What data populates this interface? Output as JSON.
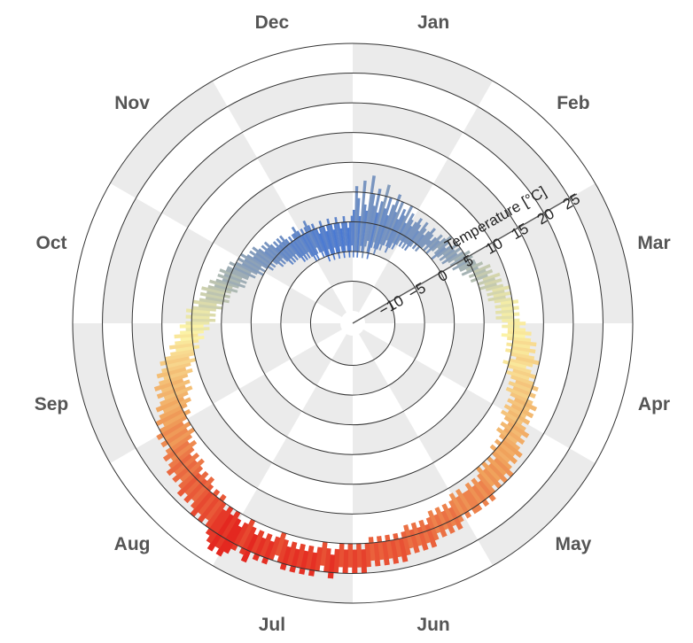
{
  "chart_data": {
    "type": "radial-bar",
    "title": "",
    "axis_label": "Temperature [°C]",
    "radial_ticks": [
      -10,
      -5,
      0,
      5,
      10,
      15,
      20,
      25
    ],
    "radial_range": [
      -15,
      30
    ],
    "months": [
      "Jan",
      "Feb",
      "Mar",
      "Apr",
      "May",
      "Jun",
      "Jul",
      "Aug",
      "Sep",
      "Oct",
      "Nov",
      "Dec"
    ],
    "series": [
      {
        "interval": "daily",
        "min_temp": [
          -6,
          -5,
          -5,
          -6,
          -5,
          -4,
          -5,
          -6,
          -4,
          -3,
          -5,
          -6,
          -4,
          -3,
          -4,
          -5,
          -4,
          -3,
          -4,
          -3,
          -2,
          -3,
          -4,
          -3,
          -2,
          -3,
          -2,
          -1,
          -2,
          -1,
          -2,
          -1,
          -2,
          -1,
          0,
          -1,
          0,
          -1,
          0,
          1,
          0,
          1,
          0,
          1,
          2,
          1,
          0,
          1,
          2,
          1,
          2,
          1,
          2,
          3,
          2,
          3,
          2,
          3,
          3,
          4,
          3,
          5,
          4,
          5,
          4,
          6,
          5,
          6,
          5,
          6,
          7,
          6,
          7,
          6,
          7,
          8,
          7,
          8,
          7,
          8,
          7,
          8,
          9,
          8,
          9,
          9,
          8,
          9,
          10,
          9,
          10,
          9,
          10,
          11,
          10,
          9,
          10,
          11,
          10,
          11,
          12,
          11,
          12,
          11,
          12,
          13,
          12,
          13,
          12,
          13,
          12,
          13,
          14,
          13,
          14,
          13,
          14,
          15,
          14,
          15,
          14,
          15,
          16,
          15,
          16,
          15,
          16,
          15,
          16,
          17,
          16,
          17,
          16,
          17,
          17,
          16,
          17,
          16,
          17,
          18,
          17,
          18,
          17,
          18,
          17,
          18,
          19,
          18,
          19,
          18,
          19,
          18,
          19,
          20,
          19,
          20,
          19,
          20,
          19,
          20,
          19,
          20,
          21,
          20,
          21,
          20,
          21,
          20,
          21,
          22,
          21,
          20,
          21,
          22,
          21,
          22,
          21,
          22,
          21,
          22,
          21,
          20,
          21,
          22,
          21,
          22,
          21,
          22,
          21,
          20,
          21,
          22,
          21,
          20,
          21,
          20,
          21,
          20,
          19,
          20,
          19,
          20,
          19,
          18,
          19,
          18,
          19,
          18,
          17,
          18,
          17,
          18,
          17,
          16,
          17,
          16,
          15,
          16,
          15,
          16,
          15,
          14,
          15,
          14,
          13,
          14,
          13,
          12,
          13,
          12,
          13,
          12,
          11,
          12,
          11,
          10,
          11,
          10,
          10,
          9,
          10,
          9,
          8,
          9,
          8,
          7,
          8,
          7,
          6,
          7,
          6,
          7,
          6,
          5,
          6,
          5,
          4,
          5,
          4,
          5,
          4,
          3,
          4,
          3,
          2,
          3,
          2,
          3,
          2,
          2,
          1,
          2,
          1,
          0,
          1,
          0,
          1,
          0,
          -1,
          0,
          -1,
          0,
          -1,
          -2,
          -1,
          -2,
          -1,
          -2,
          -3,
          -2,
          -3,
          -2,
          -3,
          -2,
          -3,
          -4,
          -3,
          -4,
          -3,
          -4,
          -3,
          -4,
          -5,
          -4,
          -5,
          -4,
          -3,
          -4,
          -5,
          -4,
          -5,
          -6,
          -5,
          -4,
          -5,
          -6,
          -5,
          -4,
          -5,
          -6,
          -5,
          -4,
          -5,
          -6,
          -5,
          -4,
          -5,
          -6,
          -5,
          -4
        ],
        "max_temp": [
          2,
          6,
          4,
          1,
          7,
          3,
          2,
          8,
          5,
          3,
          6,
          2,
          4,
          7,
          3,
          5,
          2,
          4,
          6,
          3,
          5,
          2,
          4,
          3,
          5,
          2,
          4,
          3,
          2,
          3,
          4,
          3,
          2,
          4,
          3,
          2,
          3,
          4,
          3,
          2,
          3,
          4,
          3,
          4,
          5,
          4,
          3,
          4,
          5,
          4,
          5,
          4,
          5,
          6,
          5,
          6,
          5,
          6,
          6,
          7,
          6,
          8,
          7,
          8,
          7,
          9,
          8,
          9,
          8,
          9,
          10,
          9,
          10,
          9,
          10,
          11,
          10,
          11,
          10,
          11,
          10,
          11,
          12,
          11,
          12,
          13,
          12,
          13,
          14,
          13,
          14,
          13,
          14,
          15,
          14,
          13,
          14,
          15,
          14,
          15,
          16,
          15,
          16,
          15,
          16,
          17,
          16,
          17,
          16,
          17,
          16,
          17,
          18,
          17,
          18,
          17,
          18,
          19,
          18,
          19,
          18,
          19,
          20,
          19,
          20,
          19,
          20,
          19,
          20,
          21,
          20,
          21,
          20,
          21,
          21,
          20,
          21,
          20,
          21,
          22,
          21,
          22,
          21,
          22,
          21,
          22,
          23,
          22,
          23,
          22,
          23,
          22,
          23,
          24,
          23,
          24,
          23,
          24,
          23,
          24,
          23,
          24,
          25,
          24,
          25,
          24,
          25,
          24,
          25,
          26,
          25,
          24,
          25,
          26,
          25,
          26,
          25,
          26,
          25,
          26,
          25,
          24,
          25,
          26,
          25,
          26,
          25,
          27,
          26,
          25,
          26,
          27,
          28,
          27,
          28,
          27,
          26,
          25,
          24,
          25,
          24,
          25,
          24,
          23,
          24,
          23,
          24,
          23,
          22,
          23,
          22,
          23,
          22,
          21,
          22,
          21,
          20,
          21,
          20,
          21,
          20,
          19,
          20,
          19,
          18,
          19,
          18,
          17,
          18,
          17,
          18,
          17,
          16,
          17,
          16,
          15,
          16,
          15,
          14,
          13,
          14,
          13,
          12,
          13,
          12,
          11,
          12,
          11,
          10,
          11,
          10,
          11,
          10,
          9,
          10,
          9,
          8,
          9,
          8,
          9,
          8,
          7,
          8,
          7,
          6,
          7,
          6,
          7,
          6,
          6,
          5,
          6,
          5,
          4,
          5,
          4,
          5,
          4,
          3,
          4,
          3,
          4,
          3,
          2,
          3,
          2,
          3,
          2,
          1,
          2,
          1,
          2,
          1,
          2,
          1,
          0,
          1,
          0,
          1,
          1,
          2,
          1,
          0,
          1,
          0,
          1,
          2,
          1,
          0,
          1,
          0,
          -1,
          0,
          1,
          0,
          -1,
          0,
          1,
          0,
          -1,
          0,
          1,
          0,
          -1,
          0,
          1,
          0,
          -1,
          0,
          1
        ]
      }
    ],
    "color_scale": {
      "cold": "#3a6fd8",
      "cool": "#8ea2b8",
      "mild": "#fbf2a6",
      "warm": "#f0a25c",
      "hot": "#e3201c"
    },
    "background_sector_color": "#ebebeb",
    "grid": true
  }
}
